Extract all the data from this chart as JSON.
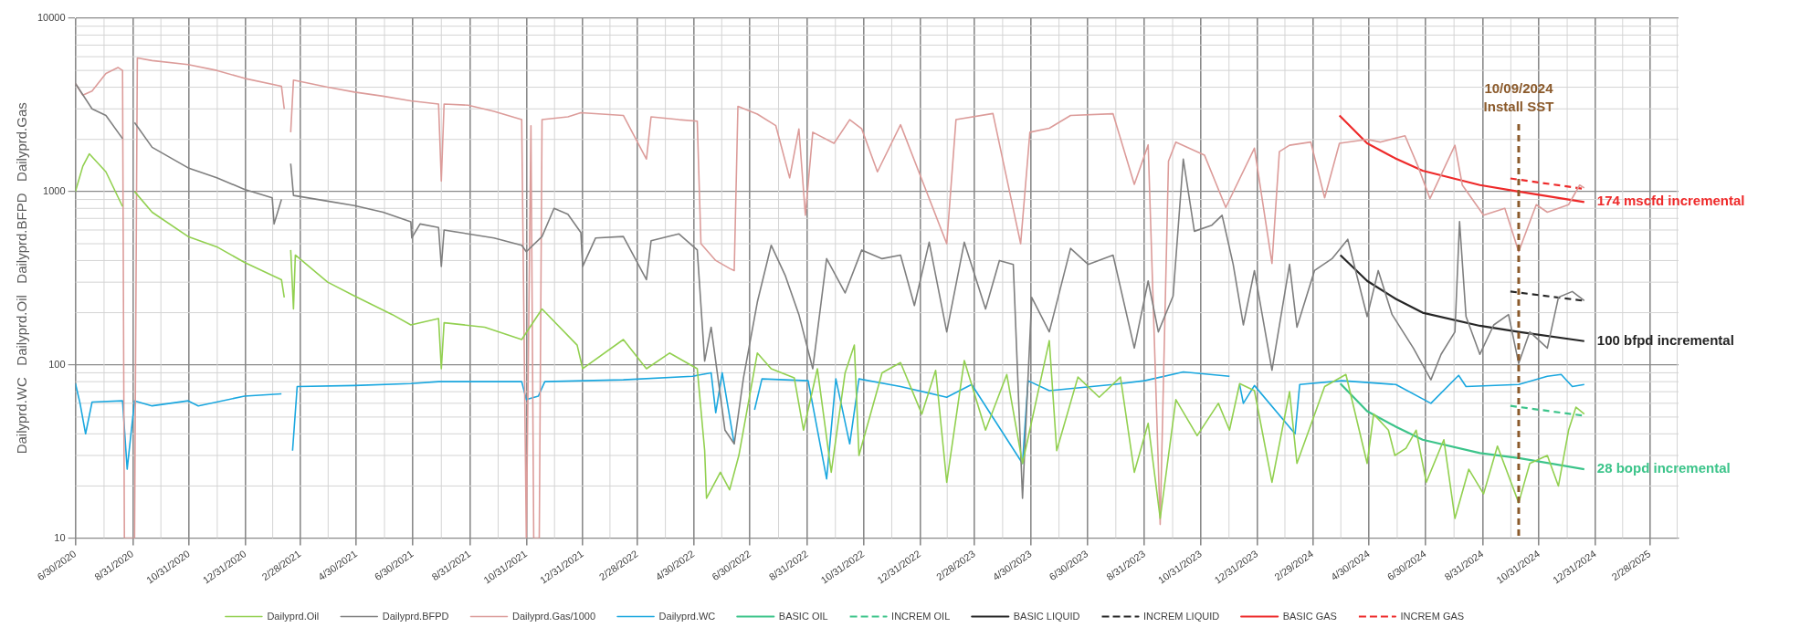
{
  "chart_data": {
    "type": "line",
    "ylabel": "Dailyprd.WC   Dailyprd.Oil   Dailyprd.BFPD   Dailyprd.Gas",
    "log": "y",
    "grid": true,
    "legend": "bottom",
    "marker": "none",
    "xlim": [
      "2020-06-30",
      "2025-03-31"
    ],
    "ylim": [
      10,
      10000
    ],
    "yticks": [
      10,
      100,
      1000,
      10000
    ],
    "xticks": [
      {
        "value": "2020-06-30",
        "label": "6/30/2020"
      },
      {
        "value": "2020-08-31",
        "label": "8/31/2020"
      },
      {
        "value": "2020-10-31",
        "label": "10/31/2020"
      },
      {
        "value": "2020-12-31",
        "label": "12/31/2020"
      },
      {
        "value": "2021-02-28",
        "label": "2/28/2021"
      },
      {
        "value": "2021-04-30",
        "label": "4/30/2021"
      },
      {
        "value": "2021-06-30",
        "label": "6/30/2021"
      },
      {
        "value": "2021-08-31",
        "label": "8/31/2021"
      },
      {
        "value": "2021-10-31",
        "label": "10/31/2021"
      },
      {
        "value": "2021-12-31",
        "label": "12/31/2021"
      },
      {
        "value": "2022-02-28",
        "label": "2/28/2022"
      },
      {
        "value": "2022-04-30",
        "label": "4/30/2022"
      },
      {
        "value": "2022-06-30",
        "label": "6/30/2022"
      },
      {
        "value": "2022-08-31",
        "label": "8/31/2022"
      },
      {
        "value": "2022-10-31",
        "label": "10/31/2022"
      },
      {
        "value": "2022-12-31",
        "label": "12/31/2022"
      },
      {
        "value": "2023-02-28",
        "label": "2/28/2023"
      },
      {
        "value": "2023-04-30",
        "label": "4/30/2023"
      },
      {
        "value": "2023-06-30",
        "label": "6/30/2023"
      },
      {
        "value": "2023-08-31",
        "label": "8/31/2023"
      },
      {
        "value": "2023-10-31",
        "label": "10/31/2023"
      },
      {
        "value": "2023-12-31",
        "label": "12/31/2023"
      },
      {
        "value": "2024-02-29",
        "label": "2/29/2024"
      },
      {
        "value": "2024-04-30",
        "label": "4/30/2024"
      },
      {
        "value": "2024-06-30",
        "label": "6/30/2024"
      },
      {
        "value": "2024-08-31",
        "label": "8/31/2024"
      },
      {
        "value": "2024-10-31",
        "label": "10/31/2024"
      },
      {
        "value": "2024-12-31",
        "label": "12/31/2024"
      },
      {
        "value": "2025-02-28",
        "label": "2/28/2025"
      }
    ],
    "series": [
      {
        "name": "Dailyprd.Oil",
        "color": "#92d050",
        "x": [
          "2020-06-30",
          "2020-07-08",
          "2020-07-15",
          "2020-08-02",
          "2020-08-20",
          "2020-08-25",
          "2020-09-02",
          "2020-09-21",
          "2020-10-30",
          "2020-11-30",
          "2020-12-30",
          "2021-02-08",
          "2021-02-11",
          "2021-02-15",
          "2021-02-18",
          "2021-02-21",
          "2021-02-23",
          "2021-03-30",
          "2021-04-28",
          "2021-06-08",
          "2021-06-28",
          "2021-07-28",
          "2021-07-31",
          "2021-08-03",
          "2021-09-16",
          "2021-10-26",
          "2021-11-17",
          "2021-12-25",
          "2021-12-31",
          "2022-02-13",
          "2022-03-10",
          "2022-04-04",
          "2022-05-04",
          "2022-05-12",
          "2022-05-14",
          "2022-05-29",
          "2022-06-08",
          "2022-06-18",
          "2022-07-08",
          "2022-07-23",
          "2022-08-17",
          "2022-08-27",
          "2022-09-11",
          "2022-09-26",
          "2022-10-11",
          "2022-10-21",
          "2022-10-26",
          "2022-11-20",
          "2022-12-10",
          "2023-01-02",
          "2023-01-17",
          "2023-01-29",
          "2023-02-17",
          "2023-03-12",
          "2023-04-04",
          "2023-04-21",
          "2023-05-20",
          "2023-05-28",
          "2023-06-20",
          "2023-07-13",
          "2023-08-05",
          "2023-08-20",
          "2023-09-04",
          "2023-09-17",
          "2023-10-04",
          "2023-10-27",
          "2023-11-19",
          "2023-12-01",
          "2023-12-12",
          "2023-12-28",
          "2024-01-16",
          "2024-02-04",
          "2024-02-12",
          "2024-03-13",
          "2024-04-05",
          "2024-04-28",
          "2024-05-05",
          "2024-05-21",
          "2024-05-28",
          "2024-06-09",
          "2024-06-20",
          "2024-07-01",
          "2024-07-20",
          "2024-08-01",
          "2024-08-16",
          "2024-09-01",
          "2024-09-16",
          "2024-10-09",
          "2024-10-21",
          "2024-11-09",
          "2024-11-21",
          "2024-12-02",
          "2024-12-10",
          "2024-12-19"
        ],
        "values": [
          1000,
          1400,
          1650,
          1300,
          820,
          null,
          1000,
          760,
          550,
          480,
          390,
          310,
          245,
          null,
          460,
          210,
          430,
          300,
          250,
          195,
          170,
          185,
          95,
          175,
          165,
          140,
          210,
          130,
          95,
          140,
          95,
          117,
          95,
          32,
          17,
          24,
          19,
          30,
          117,
          95,
          84,
          42,
          95,
          24,
          90,
          130,
          30,
          90,
          103,
          52,
          93,
          21,
          106,
          42,
          88,
          27,
          138,
          32,
          85,
          65,
          85,
          24,
          46,
          13,
          63,
          39,
          60,
          42,
          78,
          71,
          21,
          70,
          27,
          75,
          88,
          27,
          52,
          42,
          30,
          33,
          42,
          21,
          37,
          13,
          25,
          18,
          34,
          16,
          27,
          30,
          20,
          42,
          57,
          52
        ]
      },
      {
        "name": "Dailyprd.BFPD",
        "color": "#7f7f7f",
        "x": [
          "2020-06-30",
          "2020-07-18",
          "2020-08-02",
          "2020-08-20",
          "2020-08-25",
          "2020-09-02",
          "2020-09-21",
          "2020-10-30",
          "2020-11-30",
          "2020-12-30",
          "2021-01-29",
          "2021-01-31",
          "2021-02-08",
          "2021-02-15",
          "2021-02-18",
          "2021-02-21",
          "2021-03-30",
          "2021-04-28",
          "2021-05-29",
          "2021-06-28",
          "2021-06-29",
          "2021-07-08",
          "2021-07-28",
          "2021-07-31",
          "2021-08-03",
          "2021-08-29",
          "2021-09-26",
          "2021-10-26",
          "2021-10-31",
          "2021-11-17",
          "2021-11-30",
          "2021-12-15",
          "2021-12-29",
          "2021-12-31",
          "2022-01-14",
          "2022-02-13",
          "2022-03-10",
          "2022-03-15",
          "2022-04-14",
          "2022-05-04",
          "2022-05-12",
          "2022-05-19",
          "2022-06-03",
          "2022-06-13",
          "2022-06-23",
          "2022-07-08",
          "2022-07-23",
          "2022-08-07",
          "2022-08-22",
          "2022-09-06",
          "2022-09-21",
          "2022-10-11",
          "2022-10-29",
          "2022-11-20",
          "2022-12-10",
          "2022-12-25",
          "2023-01-10",
          "2023-01-29",
          "2023-02-17",
          "2023-03-12",
          "2023-03-27",
          "2023-04-11",
          "2023-04-21",
          "2023-05-01",
          "2023-05-20",
          "2023-06-12",
          "2023-07-01",
          "2023-07-28",
          "2023-08-20",
          "2023-09-04",
          "2023-09-15",
          "2023-10-01",
          "2023-10-12",
          "2023-10-24",
          "2023-11-12",
          "2023-11-23",
          "2023-12-05",
          "2023-12-16",
          "2023-12-28",
          "2024-01-16",
          "2024-02-04",
          "2024-02-12",
          "2024-03-02",
          "2024-03-21",
          "2024-04-07",
          "2024-04-28",
          "2024-05-10",
          "2024-05-25",
          "2024-06-17",
          "2024-07-06",
          "2024-07-17",
          "2024-08-01",
          "2024-08-06",
          "2024-08-13",
          "2024-08-28",
          "2024-09-12",
          "2024-09-28",
          "2024-10-09",
          "2024-10-21",
          "2024-11-09",
          "2024-11-21",
          "2024-12-06",
          "2024-12-19"
        ],
        "values": [
          4200,
          3000,
          2750,
          2020,
          null,
          2500,
          1800,
          1370,
          1200,
          1030,
          920,
          650,
          900,
          null,
          1450,
          950,
          880,
          830,
          760,
          670,
          540,
          650,
          620,
          370,
          600,
          570,
          540,
          490,
          450,
          550,
          800,
          740,
          580,
          370,
          540,
          550,
          310,
          520,
          570,
          460,
          105,
          165,
          42,
          35,
          84,
          230,
          490,
          330,
          195,
          95,
          410,
          260,
          460,
          410,
          430,
          220,
          510,
          155,
          510,
          210,
          400,
          380,
          17,
          245,
          155,
          470,
          380,
          430,
          125,
          305,
          155,
          250,
          1540,
          590,
          640,
          730,
          380,
          170,
          350,
          93,
          380,
          165,
          350,
          410,
          530,
          190,
          350,
          195,
          125,
          82,
          115,
          155,
          670,
          190,
          115,
          170,
          195,
          102,
          155,
          125,
          245,
          265,
          235
        ]
      },
      {
        "name": "Dailyprd.Gas/1000",
        "color": "#dc9c9a",
        "x": [
          "2020-06-30",
          "2020-07-08",
          "2020-07-18",
          "2020-08-02",
          "2020-08-15",
          "2020-08-20",
          "2020-08-22",
          "2020-09-02",
          "2020-09-05",
          "2020-09-21",
          "2020-10-30",
          "2020-11-30",
          "2020-12-30",
          "2021-02-08",
          "2021-02-11",
          "2021-02-15",
          "2021-02-18",
          "2021-02-21",
          "2021-03-30",
          "2021-04-28",
          "2021-05-29",
          "2021-06-28",
          "2021-07-28",
          "2021-07-31",
          "2021-08-03",
          "2021-08-29",
          "2021-09-26",
          "2021-10-26",
          "2021-10-31",
          "2021-11-05",
          "2021-11-08",
          "2021-11-14",
          "2021-11-17",
          "2021-12-15",
          "2021-12-29",
          "2022-02-13",
          "2022-03-10",
          "2022-03-15",
          "2022-04-14",
          "2022-05-04",
          "2022-05-08",
          "2022-05-24",
          "2022-06-08",
          "2022-06-13",
          "2022-06-17",
          "2022-07-08",
          "2022-07-28",
          "2022-08-12",
          "2022-08-22",
          "2022-08-29",
          "2022-09-06",
          "2022-09-29",
          "2022-10-16",
          "2022-10-29",
          "2022-11-15",
          "2022-12-10",
          "2023-01-29",
          "2023-02-08",
          "2023-03-20",
          "2023-04-19",
          "2023-04-29",
          "2023-05-20",
          "2023-06-12",
          "2023-07-28",
          "2023-08-20",
          "2023-09-04",
          "2023-09-17",
          "2023-09-26",
          "2023-10-04",
          "2023-11-04",
          "2023-11-27",
          "2023-12-28",
          "2024-01-16",
          "2024-01-24",
          "2024-02-04",
          "2024-02-27",
          "2024-03-13",
          "2024-03-29",
          "2024-04-28",
          "2024-05-12",
          "2024-06-08",
          "2024-06-22",
          "2024-07-05",
          "2024-08-01",
          "2024-08-09",
          "2024-09-01",
          "2024-09-24",
          "2024-10-09",
          "2024-10-28",
          "2024-11-09",
          "2024-12-02",
          "2024-12-14",
          "2024-12-19"
        ],
        "values": [
          4200,
          3600,
          3800,
          4800,
          5200,
          5000,
          10,
          10,
          5900,
          5700,
          5400,
          5000,
          4500,
          4050,
          3000,
          null,
          2200,
          4400,
          4000,
          3750,
          3550,
          3340,
          3200,
          1150,
          3200,
          3150,
          2900,
          2600,
          10,
          2400,
          10,
          10,
          2600,
          2700,
          2850,
          2750,
          1540,
          2700,
          2600,
          2550,
          500,
          400,
          360,
          350,
          3100,
          2800,
          2400,
          1200,
          2300,
          730,
          2200,
          1900,
          2600,
          2300,
          1300,
          2430,
          500,
          2600,
          2820,
          500,
          2200,
          2320,
          2750,
          2810,
          1100,
          1860,
          12,
          1500,
          1930,
          1620,
          810,
          1780,
          385,
          1700,
          1850,
          1930,
          920,
          1900,
          2000,
          1930,
          2100,
          1400,
          910,
          1850,
          1090,
          730,
          800,
          450,
          840,
          760,
          840,
          1090,
          1050
        ]
      },
      {
        "name": "Dailyprd.WC",
        "color": "#1aa7df",
        "x": [
          "2020-06-30",
          "2020-07-05",
          "2020-07-11",
          "2020-07-18",
          "2020-08-20",
          "2020-08-25",
          "2020-09-02",
          "2020-09-21",
          "2020-10-30",
          "2020-11-10",
          "2020-12-30",
          "2021-02-08",
          "2021-02-15",
          "2021-02-20",
          "2021-02-25",
          "2021-04-28",
          "2021-06-28",
          "2021-07-28",
          "2021-10-26",
          "2021-10-31",
          "2021-11-13",
          "2021-11-20",
          "2022-02-13",
          "2022-04-29",
          "2022-05-19",
          "2022-05-24",
          "2022-05-31",
          "2022-06-13",
          "2022-06-23",
          "2022-07-05",
          "2022-07-13",
          "2022-09-01",
          "2022-09-21",
          "2022-10-01",
          "2022-10-16",
          "2022-10-26",
          "2022-12-10",
          "2023-01-29",
          "2023-02-25",
          "2023-04-21",
          "2023-04-27",
          "2023-05-20",
          "2023-07-28",
          "2023-08-31",
          "2023-10-12",
          "2023-12-01",
          "2023-12-05",
          "2023-12-12",
          "2023-12-16",
          "2023-12-28",
          "2024-02-10",
          "2024-02-15",
          "2024-04-01",
          "2024-05-29",
          "2024-07-06",
          "2024-08-05",
          "2024-08-13",
          "2024-10-09",
          "2024-11-09",
          "2024-11-24",
          "2024-12-06",
          "2024-12-19"
        ],
        "values": [
          78,
          60,
          40,
          61,
          62,
          25,
          62,
          58,
          62,
          58,
          66,
          68,
          null,
          32,
          75,
          76,
          78,
          80,
          80,
          63,
          66,
          80,
          82,
          86,
          90,
          53,
          90,
          35,
          null,
          55,
          83,
          81,
          22,
          83,
          35,
          83,
          75,
          65,
          77,
          27,
          81,
          71,
          77,
          81,
          91,
          86,
          null,
          77,
          60,
          76,
          40,
          77,
          81,
          77,
          60,
          87,
          75,
          77,
          86,
          88,
          75,
          77
        ]
      },
      {
        "name": "BASIC OIL",
        "color": "#3cc48a",
        "x": [
          "2024-03-30",
          "2024-04-28",
          "2024-05-29",
          "2024-06-27",
          "2024-08-28",
          "2024-10-09",
          "2024-12-19"
        ],
        "values": [
          78,
          54,
          44,
          37,
          31,
          29,
          25
        ]
      },
      {
        "name": "INCREM OIL",
        "color": "#3cc48a",
        "line_style": "dashed",
        "x": [
          "2024-09-30",
          "2024-12-17"
        ],
        "values": [
          58,
          51
        ]
      },
      {
        "name": "BASIC LIQUID",
        "color": "#262626",
        "x": [
          "2024-03-30",
          "2024-04-28",
          "2024-05-29",
          "2024-06-27",
          "2024-08-28",
          "2024-10-09",
          "2024-12-19"
        ],
        "values": [
          430,
          305,
          240,
          200,
          168,
          155,
          137
        ]
      },
      {
        "name": "INCREM LIQUID",
        "color": "#262626",
        "line_style": "dashed",
        "x": [
          "2024-09-30",
          "2024-12-17"
        ],
        "values": [
          265,
          235
        ]
      },
      {
        "name": "BASIC GAS",
        "color": "#ee2a2a",
        "x": [
          "2024-03-29",
          "2024-04-28",
          "2024-05-29",
          "2024-06-27",
          "2024-08-28",
          "2024-10-09",
          "2024-12-19"
        ],
        "values": [
          2750,
          1900,
          1550,
          1320,
          1090,
          1000,
          870
        ]
      },
      {
        "name": "INCREM GAS",
        "color": "#ee2a2a",
        "line_style": "dashed",
        "x": [
          "2024-09-30",
          "2024-12-17"
        ],
        "values": [
          1190,
          1040
        ]
      }
    ],
    "ref_lines": [
      {
        "axis": "x",
        "value": "2024-10-09",
        "label": "10/09/2024\nInstall SST",
        "color": "#8b5a2b",
        "line_style": "dashed"
      }
    ],
    "annotations": [
      {
        "text": "174 mscfd incremental",
        "x": "2024-12-19",
        "y": 870
      },
      {
        "text": "100 bfpd incremental",
        "x": "2024-12-19",
        "y": 137
      },
      {
        "text": "28 bopd incremental",
        "x": "2024-12-19",
        "y": 25
      }
    ]
  }
}
